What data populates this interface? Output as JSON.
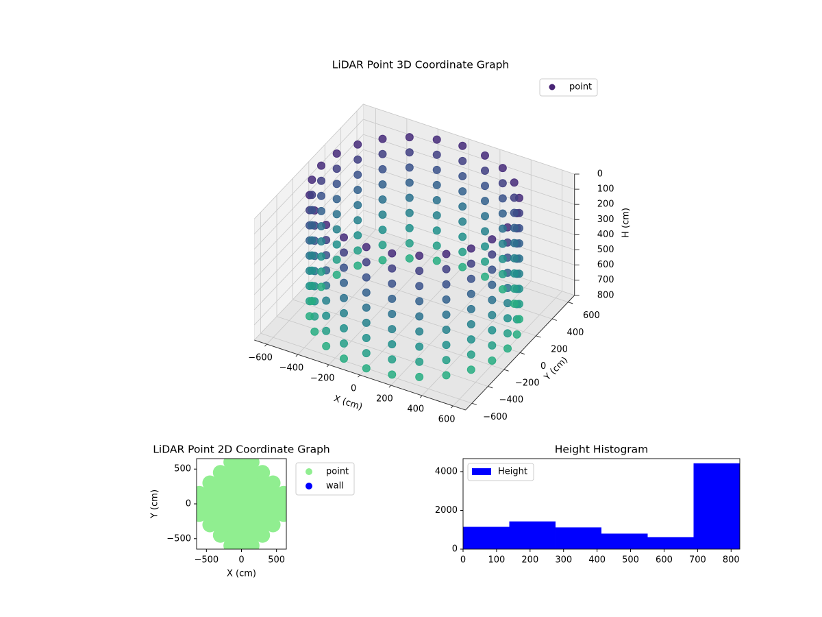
{
  "chart_data": [
    {
      "type": "scatter3d",
      "title": "LiDAR Point 3D Coordinate Graph",
      "xlabel": "X (cm)",
      "ylabel": "Y (cm)",
      "zlabel": "H (cm)",
      "xlim": [
        -680,
        680
      ],
      "ylim": [
        -680,
        680
      ],
      "zlim": [
        0,
        800
      ],
      "z_inverted": true,
      "xticks": [
        {
          "value": -600,
          "label": "−600"
        },
        {
          "value": -400,
          "label": "−400"
        },
        {
          "value": -200,
          "label": "−200"
        },
        0,
        200,
        400,
        600
      ],
      "yticks": [
        {
          "value": -600,
          "label": "−600"
        },
        {
          "value": -400,
          "label": "−400"
        },
        {
          "value": -200,
          "label": "−200"
        },
        0,
        200,
        400,
        600
      ],
      "zticks": [
        0,
        100,
        200,
        300,
        400,
        500,
        600,
        700,
        800
      ],
      "colormap": [
        "#472c7a",
        "#3b528b",
        "#2c728e",
        "#21918c",
        "#27ad81"
      ],
      "grid": true,
      "legend": "upper right",
      "series": [
        {
          "name": "point",
          "color": "#482475",
          "x": [
            600,
            580,
            520,
            424,
            300,
            155,
            0,
            -155,
            -300,
            -424,
            -520,
            -580,
            -600,
            -580,
            -520,
            -424,
            -300,
            -155,
            0,
            155,
            300,
            424,
            520,
            580,
            600,
            580,
            520,
            424,
            300,
            155,
            0,
            -155,
            -300,
            -424,
            -520,
            -580,
            -600,
            -580,
            -520,
            -424,
            -300,
            -155,
            0,
            155,
            300,
            424,
            520,
            580,
            600,
            580,
            520,
            424,
            300,
            155,
            0,
            -155,
            -300,
            -424,
            -520,
            -580,
            -600,
            -580,
            -520,
            -424,
            -300,
            -155,
            0,
            155,
            300,
            424,
            520,
            580,
            600,
            580,
            520,
            424,
            300,
            155,
            0,
            -155,
            -300,
            -424,
            -520,
            -580,
            -600,
            -580,
            -520,
            -424,
            -300,
            -155,
            0,
            155,
            300,
            424,
            520,
            580,
            600,
            580,
            520,
            424,
            300,
            155,
            0,
            -155,
            -300,
            -424,
            -520,
            -580,
            -600,
            -580,
            -520,
            -424,
            -300,
            -155,
            0,
            155,
            300,
            424,
            520,
            580,
            600,
            580,
            520,
            424,
            300,
            155,
            0,
            -155,
            -300,
            -424,
            -520,
            -580,
            -600,
            -580,
            -520,
            -424,
            -300,
            -155,
            0,
            155,
            300,
            424,
            520,
            580,
            600,
            580,
            520,
            424,
            300,
            155,
            0,
            -155,
            -300,
            -424,
            -520,
            -580,
            -600,
            -580,
            -520,
            -424,
            -300,
            -155,
            0,
            155,
            300,
            424,
            520,
            580,
            600,
            580,
            520,
            424,
            300,
            155,
            0,
            -155,
            -300,
            -424,
            -520,
            -580,
            -600,
            -580,
            -520,
            -424,
            -300,
            -155,
            0,
            155,
            300,
            424,
            520,
            580,
            600,
            580,
            520,
            424,
            300,
            155,
            0,
            -155,
            -300,
            -424,
            -520,
            -580,
            -600,
            -580,
            -520,
            -424,
            -300,
            -155,
            0,
            155,
            300,
            424,
            520,
            580
          ],
          "y": [
            0,
            155,
            300,
            424,
            520,
            580,
            600,
            580,
            520,
            424,
            300,
            155,
            0,
            -155,
            -300,
            -424,
            -520,
            -580,
            -600,
            -580,
            -520,
            -424,
            -300,
            -155,
            0,
            155,
            300,
            424,
            520,
            580,
            600,
            580,
            520,
            424,
            300,
            155,
            0,
            -155,
            -300,
            -424,
            -520,
            -580,
            -600,
            -580,
            -520,
            -424,
            -300,
            -155,
            0,
            155,
            300,
            424,
            520,
            580,
            600,
            580,
            520,
            424,
            300,
            155,
            0,
            -155,
            -300,
            -424,
            -520,
            -580,
            -600,
            -580,
            -520,
            -424,
            -300,
            -155,
            0,
            155,
            300,
            424,
            520,
            580,
            600,
            580,
            520,
            424,
            300,
            155,
            0,
            -155,
            -300,
            -424,
            -520,
            -580,
            -600,
            -580,
            -520,
            -424,
            -300,
            -155,
            0,
            155,
            300,
            424,
            520,
            580,
            600,
            580,
            520,
            424,
            300,
            155,
            0,
            -155,
            -300,
            -424,
            -520,
            -580,
            -600,
            -580,
            -520,
            -424,
            -300,
            -155,
            0,
            155,
            300,
            424,
            520,
            580,
            600,
            580,
            520,
            424,
            300,
            155,
            0,
            -155,
            -300,
            -424,
            -520,
            -580,
            -600,
            -580,
            -520,
            -424,
            -300,
            -155,
            0,
            155,
            300,
            424,
            520,
            580,
            600,
            580,
            520,
            424,
            300,
            155,
            0,
            -155,
            -300,
            -424,
            -520,
            -580,
            -600,
            -580,
            -520,
            -424,
            -300,
            -155,
            0,
            155,
            300,
            424,
            520,
            580,
            600,
            580,
            520,
            424,
            300,
            155,
            0,
            -155,
            -300,
            -424,
            -520,
            -580,
            -600,
            -580,
            -520,
            -424,
            -300,
            -155,
            0,
            155,
            300,
            424,
            520,
            580,
            600,
            580,
            520,
            424,
            300,
            155,
            0,
            -155,
            -300,
            -424,
            -520,
            -580,
            -600,
            -580,
            -520,
            -424,
            -300,
            -155
          ],
          "z": [
            0,
            0,
            0,
            0,
            0,
            0,
            0,
            0,
            0,
            0,
            0,
            0,
            0,
            0,
            0,
            0,
            0,
            0,
            0,
            0,
            0,
            0,
            0,
            0,
            100,
            100,
            100,
            100,
            100,
            100,
            100,
            100,
            100,
            100,
            100,
            100,
            100,
            100,
            100,
            100,
            100,
            100,
            100,
            100,
            100,
            100,
            100,
            100,
            200,
            200,
            200,
            200,
            200,
            200,
            200,
            200,
            200,
            200,
            200,
            200,
            200,
            200,
            200,
            200,
            200,
            200,
            200,
            200,
            200,
            200,
            200,
            200,
            300,
            300,
            300,
            300,
            300,
            300,
            300,
            300,
            300,
            300,
            300,
            300,
            300,
            300,
            300,
            300,
            300,
            300,
            300,
            300,
            300,
            300,
            300,
            300,
            400,
            400,
            400,
            400,
            400,
            400,
            400,
            400,
            400,
            400,
            400,
            400,
            400,
            400,
            400,
            400,
            400,
            400,
            400,
            400,
            400,
            400,
            400,
            400,
            500,
            500,
            500,
            500,
            500,
            500,
            500,
            500,
            500,
            500,
            500,
            500,
            500,
            500,
            500,
            500,
            500,
            500,
            500,
            500,
            500,
            500,
            500,
            500,
            600,
            600,
            600,
            600,
            600,
            600,
            600,
            600,
            600,
            600,
            600,
            600,
            600,
            600,
            600,
            600,
            600,
            600,
            600,
            600,
            600,
            600,
            600,
            600,
            700,
            700,
            700,
            700,
            700,
            700,
            700,
            700,
            700,
            700,
            700,
            700,
            700,
            700,
            700,
            700,
            700,
            700,
            700,
            700,
            700,
            700,
            700,
            700,
            800,
            800,
            800,
            800,
            800,
            800,
            800,
            800,
            800,
            800,
            800,
            800,
            800,
            800,
            800,
            800,
            800,
            800,
            800,
            800,
            800,
            800,
            800,
            800
          ]
        }
      ]
    },
    {
      "type": "scatter",
      "title": "LiDAR Point 2D Coordinate Graph",
      "xlabel": "X (cm)",
      "ylabel": "Y (cm)",
      "xlim": [
        -640,
        640
      ],
      "ylim": [
        -650,
        650
      ],
      "xticks": [
        {
          "value": -500,
          "label": "−500"
        },
        0,
        500
      ],
      "yticks": [
        {
          "value": -500,
          "label": "−500"
        },
        0,
        500
      ],
      "legend": "outside right",
      "series": [
        {
          "name": "point",
          "color": "#90ee90",
          "x": [
            -600,
            -600,
            -600,
            -450,
            -450,
            -450,
            -450,
            -450,
            -300,
            -300,
            -300,
            -300,
            -300,
            -300,
            -300,
            -150,
            -150,
            -150,
            -150,
            -150,
            -150,
            -150,
            -150,
            -150,
            0,
            0,
            0,
            0,
            0,
            0,
            0,
            0,
            0,
            150,
            150,
            150,
            150,
            150,
            150,
            150,
            150,
            150,
            300,
            300,
            300,
            300,
            300,
            300,
            300,
            450,
            450,
            450,
            450,
            450,
            600,
            600,
            600
          ],
          "y": [
            -150,
            0,
            150,
            -300,
            -150,
            0,
            150,
            300,
            -450,
            -300,
            -150,
            0,
            150,
            300,
            450,
            -600,
            -450,
            -300,
            -150,
            0,
            150,
            300,
            450,
            600,
            -600,
            -450,
            -300,
            -150,
            0,
            150,
            300,
            450,
            600,
            -600,
            -450,
            -300,
            -150,
            0,
            150,
            300,
            450,
            600,
            -450,
            -300,
            -150,
            0,
            150,
            300,
            450,
            -300,
            -150,
            0,
            150,
            300,
            -150,
            0,
            150
          ]
        },
        {
          "name": "wall",
          "color": "#0000ff",
          "x": [],
          "y": []
        }
      ]
    },
    {
      "type": "histogram",
      "title": "Height Histogram",
      "label": "Height",
      "color": "#0000ff",
      "bins": [
        0,
        138,
        276,
        413,
        551,
        688,
        826
      ],
      "values": [
        1150,
        1430,
        1120,
        800,
        620,
        4430
      ],
      "xlim": [
        0,
        826
      ],
      "ylim": [
        0,
        4670
      ],
      "xticks": [
        0,
        100,
        200,
        300,
        400,
        500,
        600,
        700,
        800
      ],
      "yticks": [
        0,
        2000,
        4000
      ],
      "legend": "upper left"
    }
  ]
}
